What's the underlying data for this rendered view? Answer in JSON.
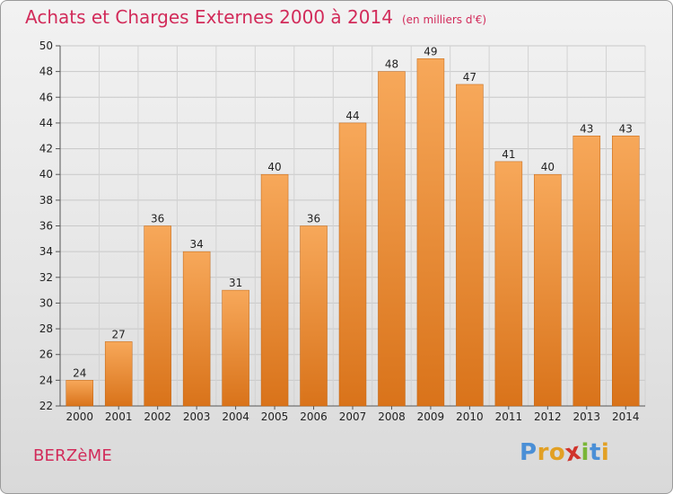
{
  "chart_data": {
    "type": "bar",
    "title": "Achats et Charges Externes 2000 à 2014",
    "subtitle": "(en milliers d'€)",
    "categories": [
      "2000",
      "2001",
      "2002",
      "2003",
      "2004",
      "2005",
      "2006",
      "2007",
      "2008",
      "2009",
      "2010",
      "2011",
      "2012",
      "2013",
      "2014"
    ],
    "values": [
      24,
      27,
      36,
      34,
      31,
      40,
      36,
      44,
      48,
      49,
      47,
      41,
      40,
      43,
      43
    ],
    "xlabel": "",
    "ylabel": "",
    "ylim": [
      22,
      50
    ],
    "yticks": [
      22,
      24,
      26,
      28,
      30,
      32,
      34,
      36,
      38,
      40,
      42,
      44,
      46,
      48,
      50
    ],
    "grid": true,
    "bar_color_top": "#f7a85a",
    "bar_color_bottom": "#d9731a"
  },
  "footer": {
    "commune": "BERZèME",
    "logo_letters": [
      {
        "ch": "P",
        "color": "#4a8fd6"
      },
      {
        "ch": "r",
        "color": "#e2a024"
      },
      {
        "ch": "o",
        "color": "#e2a024"
      },
      {
        "ch": "x",
        "color": "#d0342c"
      },
      {
        "ch": "i",
        "color": "#7ab638"
      },
      {
        "ch": "t",
        "color": "#4a8fd6"
      },
      {
        "ch": "i",
        "color": "#e2a024"
      }
    ]
  }
}
